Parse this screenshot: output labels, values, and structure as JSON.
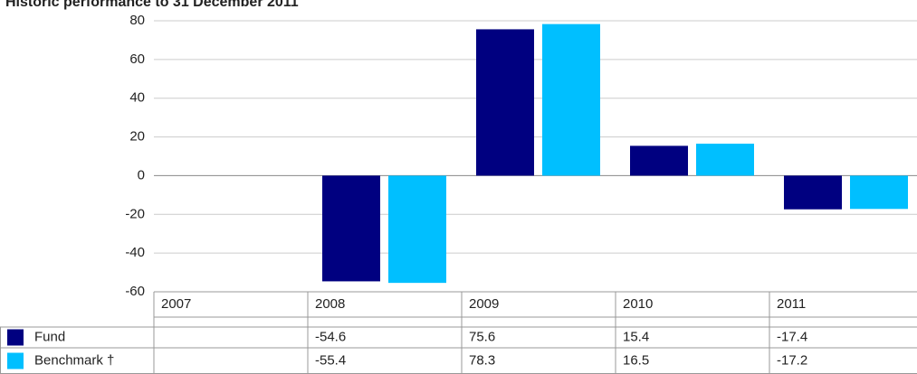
{
  "chart_data": {
    "type": "bar",
    "title": "Historic performance to 31 December 2011",
    "categories": [
      "2007",
      "2008",
      "2009",
      "2010",
      "2011"
    ],
    "series": [
      {
        "name": "Fund",
        "color": "#000080",
        "values": [
          null,
          -54.6,
          75.6,
          15.4,
          -17.4
        ]
      },
      {
        "name": "Benchmark †",
        "color": "#00bfff",
        "values": [
          null,
          -55.4,
          78.3,
          16.5,
          -17.2
        ]
      }
    ],
    "ylim": [
      -60,
      80
    ],
    "yticks": [
      -60,
      -40,
      -20,
      0,
      20,
      40,
      60,
      80
    ],
    "grid": true
  }
}
